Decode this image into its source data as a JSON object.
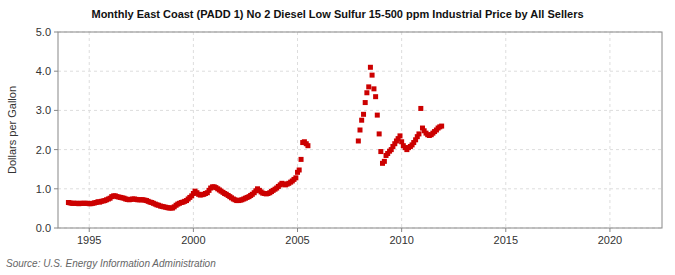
{
  "chart_data": {
    "type": "scatter",
    "title": "Monthly East Coast (PADD 1) No 2 Diesel Low Sulfur 15-500 ppm Industrial Price by All Sellers",
    "ylabel": "Dollars per Gallon",
    "annotations": [
      "Source: U.S. Energy Information Administration"
    ],
    "xlim": [
      1993.5,
      2022.5
    ],
    "ylim": [
      0.0,
      5.0
    ],
    "xticks": [
      1995,
      2000,
      2005,
      2010,
      2015,
      2020
    ],
    "yticks": [
      {
        "value": 0.0,
        "label": "0.0"
      },
      {
        "value": 1.0,
        "label": "1.0"
      },
      {
        "value": 2.0,
        "label": "2.0"
      },
      {
        "value": 3.0,
        "label": "3.0"
      },
      {
        "value": 4.0,
        "label": "4.0"
      },
      {
        "value": 5.0,
        "label": "5.0"
      }
    ],
    "grid": true,
    "color": "#cc0000",
    "marker": "square",
    "x": [
      1994.0,
      1994.08,
      1994.17,
      1994.25,
      1994.33,
      1994.42,
      1994.5,
      1994.58,
      1994.67,
      1994.75,
      1994.83,
      1994.92,
      1995.0,
      1995.08,
      1995.17,
      1995.25,
      1995.33,
      1995.42,
      1995.5,
      1995.58,
      1995.67,
      1995.75,
      1995.83,
      1995.92,
      1996.0,
      1996.08,
      1996.17,
      1996.25,
      1996.33,
      1996.42,
      1996.5,
      1996.58,
      1996.67,
      1996.75,
      1996.83,
      1996.92,
      1997.0,
      1997.08,
      1997.17,
      1997.25,
      1997.33,
      1997.42,
      1997.5,
      1997.58,
      1997.67,
      1997.75,
      1997.83,
      1997.92,
      1998.0,
      1998.08,
      1998.17,
      1998.25,
      1998.33,
      1998.42,
      1998.5,
      1998.58,
      1998.67,
      1998.75,
      1998.83,
      1998.92,
      1999.0,
      1999.08,
      1999.17,
      1999.25,
      1999.33,
      1999.42,
      1999.5,
      1999.58,
      1999.67,
      1999.75,
      1999.83,
      1999.92,
      2000.0,
      2000.08,
      2000.17,
      2000.25,
      2000.33,
      2000.42,
      2000.5,
      2000.58,
      2000.67,
      2000.75,
      2000.83,
      2000.92,
      2001.0,
      2001.08,
      2001.17,
      2001.25,
      2001.33,
      2001.42,
      2001.5,
      2001.58,
      2001.67,
      2001.75,
      2001.83,
      2001.92,
      2002.0,
      2002.08,
      2002.17,
      2002.25,
      2002.33,
      2002.42,
      2002.5,
      2002.58,
      2002.67,
      2002.75,
      2002.83,
      2002.92,
      2003.0,
      2003.08,
      2003.17,
      2003.25,
      2003.33,
      2003.42,
      2003.5,
      2003.58,
      2003.67,
      2003.75,
      2003.83,
      2003.92,
      2004.0,
      2004.08,
      2004.17,
      2004.25,
      2004.33,
      2004.42,
      2004.5,
      2004.58,
      2004.67,
      2004.75,
      2004.83,
      2004.92,
      2005.0,
      2005.08,
      2005.17,
      2005.25,
      2005.33,
      2005.42,
      2005.5,
      2007.92,
      2008.0,
      2008.08,
      2008.17,
      2008.25,
      2008.33,
      2008.42,
      2008.5,
      2008.58,
      2008.67,
      2008.75,
      2008.83,
      2008.92,
      2009.0,
      2009.08,
      2009.17,
      2009.25,
      2009.33,
      2009.42,
      2009.5,
      2009.58,
      2009.67,
      2009.75,
      2009.83,
      2009.92,
      2010.0,
      2010.08,
      2010.17,
      2010.25,
      2010.33,
      2010.42,
      2010.5,
      2010.58,
      2010.67,
      2010.75,
      2010.83,
      2010.92,
      2011.0,
      2011.08,
      2011.17,
      2011.25,
      2011.33,
      2011.42,
      2011.5,
      2011.58,
      2011.67,
      2011.75,
      2011.83,
      2011.92
    ],
    "values": [
      0.65,
      0.64,
      0.63,
      0.63,
      0.63,
      0.63,
      0.62,
      0.63,
      0.63,
      0.63,
      0.63,
      0.63,
      0.62,
      0.62,
      0.63,
      0.64,
      0.65,
      0.67,
      0.66,
      0.68,
      0.69,
      0.7,
      0.72,
      0.74,
      0.76,
      0.8,
      0.82,
      0.82,
      0.8,
      0.79,
      0.78,
      0.77,
      0.76,
      0.74,
      0.73,
      0.72,
      0.73,
      0.74,
      0.74,
      0.73,
      0.72,
      0.72,
      0.72,
      0.72,
      0.71,
      0.7,
      0.68,
      0.66,
      0.65,
      0.63,
      0.61,
      0.59,
      0.58,
      0.56,
      0.55,
      0.54,
      0.53,
      0.52,
      0.51,
      0.51,
      0.51,
      0.54,
      0.58,
      0.61,
      0.63,
      0.65,
      0.66,
      0.68,
      0.7,
      0.74,
      0.78,
      0.82,
      0.88,
      0.94,
      0.9,
      0.86,
      0.84,
      0.85,
      0.86,
      0.88,
      0.9,
      0.96,
      1.02,
      1.05,
      1.05,
      1.03,
      1.0,
      0.97,
      0.94,
      0.91,
      0.88,
      0.86,
      0.83,
      0.8,
      0.77,
      0.74,
      0.72,
      0.7,
      0.7,
      0.71,
      0.72,
      0.74,
      0.76,
      0.78,
      0.8,
      0.83,
      0.86,
      0.9,
      0.95,
      1.0,
      0.96,
      0.92,
      0.89,
      0.88,
      0.87,
      0.88,
      0.9,
      0.93,
      0.96,
      0.99,
      1.02,
      1.06,
      1.1,
      1.14,
      1.12,
      1.1,
      1.12,
      1.14,
      1.17,
      1.2,
      1.24,
      1.28,
      1.42,
      1.48,
      1.75,
      2.18,
      2.2,
      2.15,
      2.1,
      2.22,
      2.5,
      2.75,
      2.9,
      3.2,
      3.45,
      3.6,
      4.1,
      3.9,
      3.55,
      3.35,
      2.88,
      2.4,
      1.95,
      1.65,
      1.7,
      1.85,
      1.9,
      1.96,
      2.0,
      2.08,
      2.15,
      2.22,
      2.28,
      2.35,
      2.2,
      2.1,
      2.05,
      2.0,
      2.05,
      2.08,
      2.12,
      2.18,
      2.25,
      2.33,
      2.4,
      3.05,
      2.55,
      2.48,
      2.42,
      2.38,
      2.36,
      2.38,
      2.42,
      2.46,
      2.5,
      2.55,
      2.58,
      2.6
    ]
  }
}
